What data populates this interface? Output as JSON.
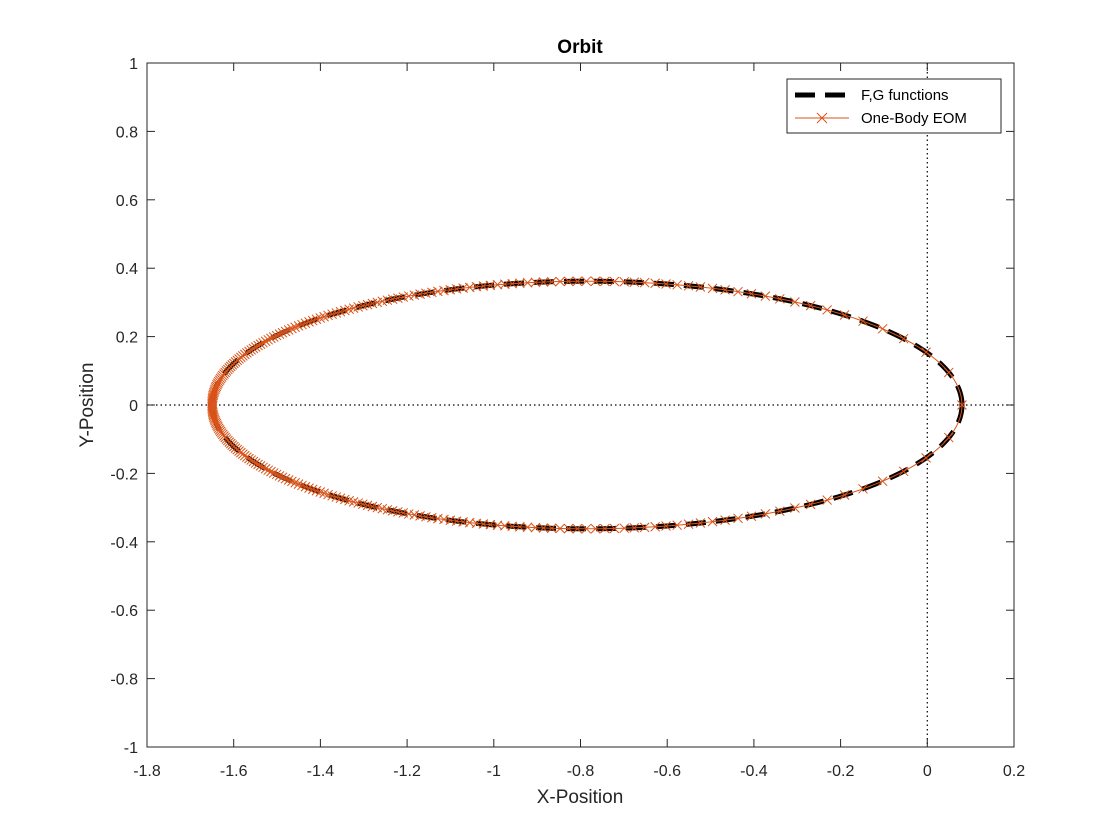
{
  "chart_data": {
    "type": "line",
    "title": "Orbit",
    "xlabel": "X-Position",
    "ylabel": "Y-Position",
    "xlim": [
      -1.8,
      0.2
    ],
    "ylim": [
      -1,
      1
    ],
    "xticks": [
      "-1.8",
      "-1.6",
      "-1.4",
      "-1.2",
      "-1",
      "-0.8",
      "-0.6",
      "-0.4",
      "-0.2",
      "0",
      "0.2"
    ],
    "yticks": [
      "1",
      "0.8",
      "0.6",
      "0.4",
      "0.2",
      "0",
      "-0.2",
      "-0.4",
      "-0.6",
      "-0.8",
      "-1"
    ],
    "legend_position": "top-right",
    "reference_lines": {
      "x": 0,
      "y": 0,
      "style": "dotted"
    },
    "ellipse": {
      "center_x": -0.785,
      "center_y": 0.0,
      "semi_major": 0.865,
      "semi_minor": 0.362
    },
    "series": [
      {
        "name": "F,G functions",
        "color": "#000000",
        "style": "dashed",
        "marker": "none"
      },
      {
        "name": "One-Body EOM",
        "color": "#D95319",
        "style": "solid",
        "marker": "x"
      }
    ]
  }
}
